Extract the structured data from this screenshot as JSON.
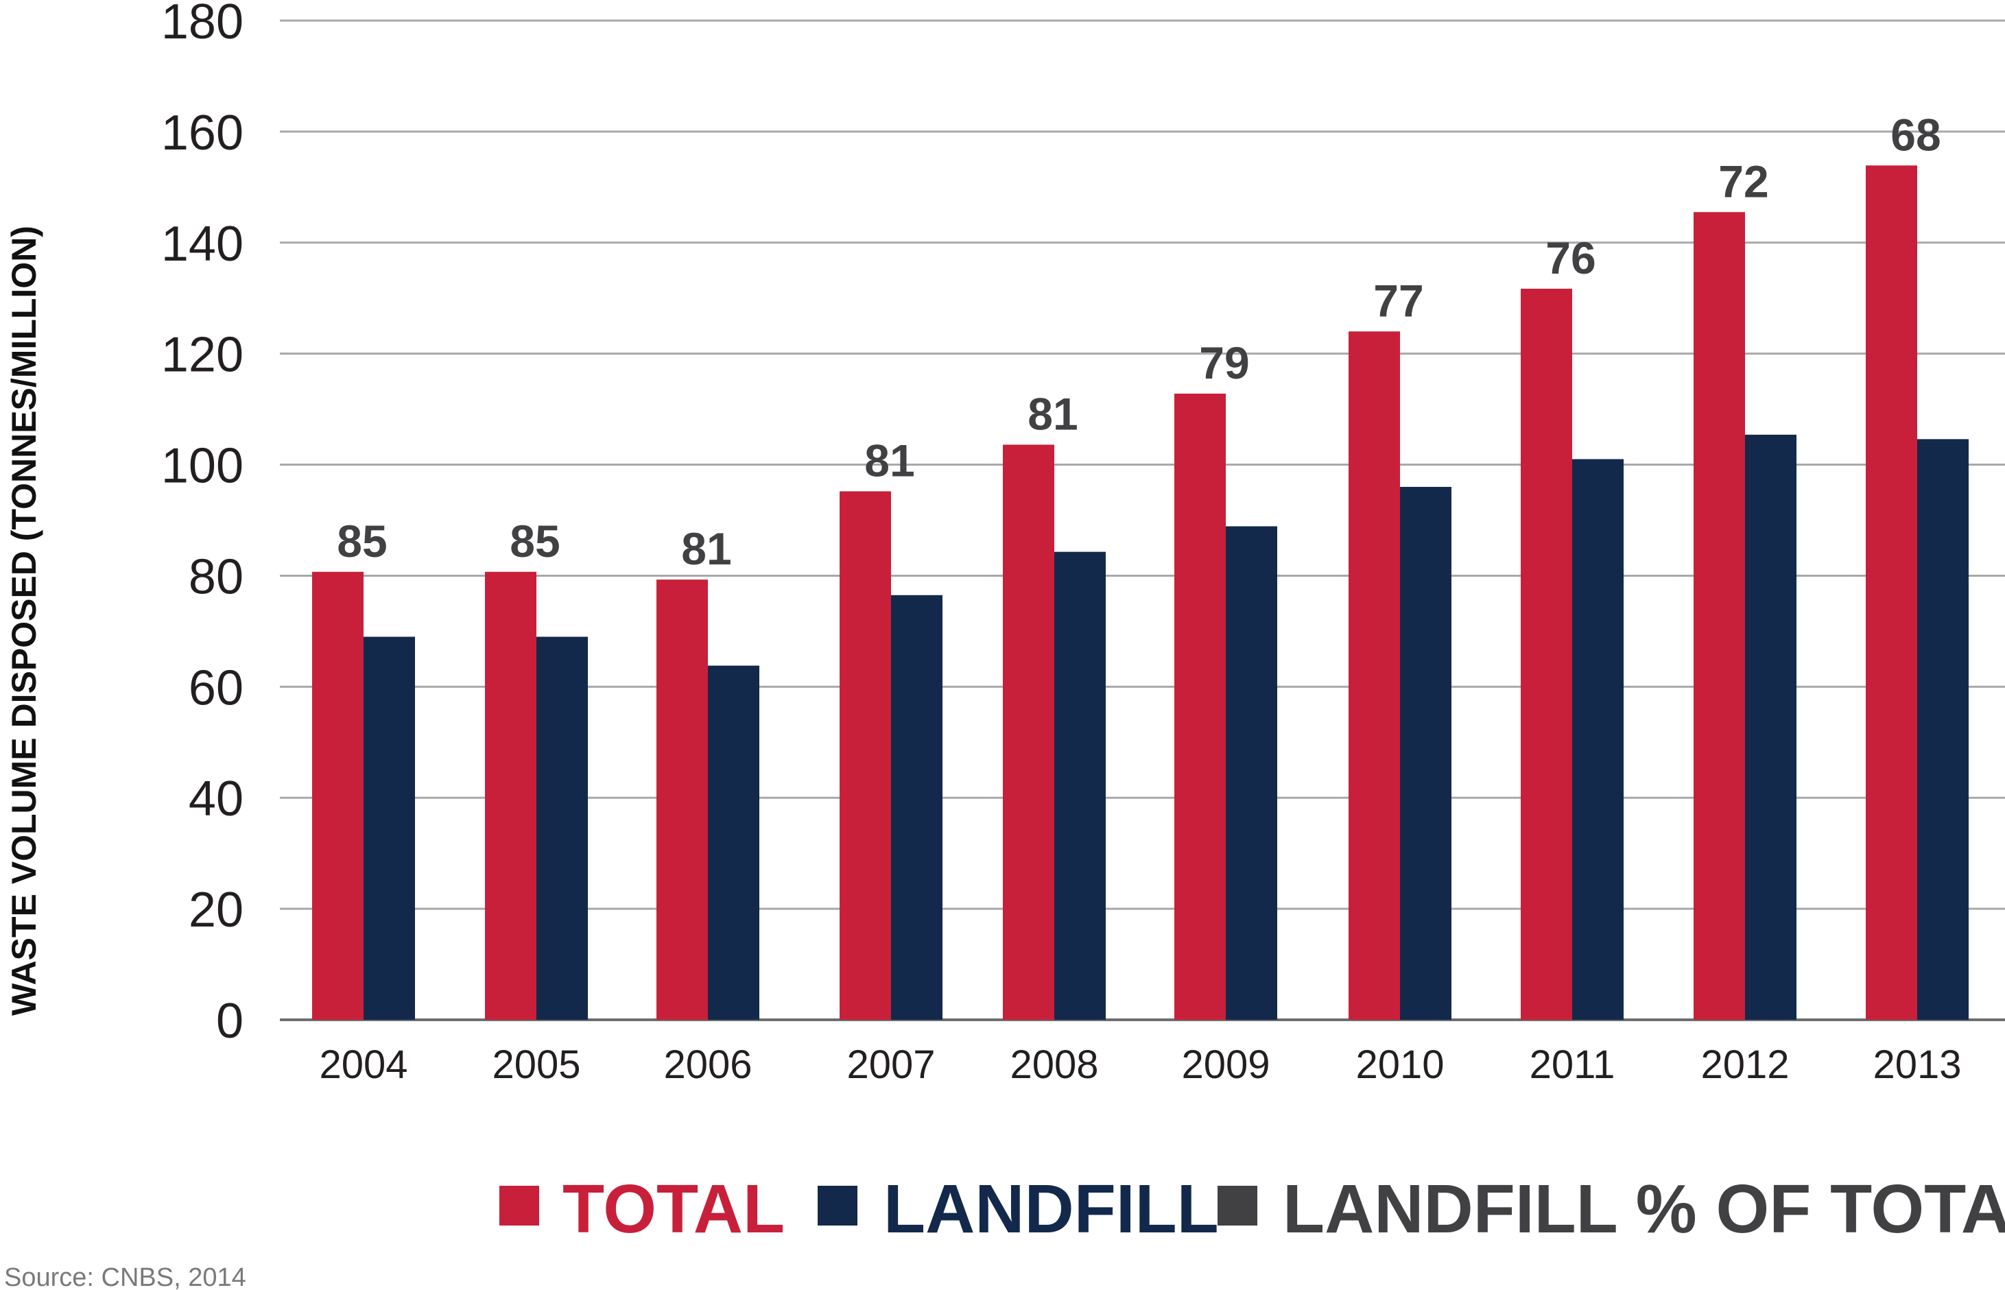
{
  "chart_data": {
    "type": "bar",
    "categories": [
      "2004",
      "2005",
      "2006",
      "2007",
      "2008",
      "2009",
      "2010",
      "2011",
      "2012",
      "2013"
    ],
    "series": [
      {
        "name": "TOTAL",
        "color": "#c8203a",
        "values": [
          80.7,
          80.7,
          79.3,
          95.2,
          103.6,
          112.8,
          124.0,
          131.7,
          145.5,
          153.9
        ]
      },
      {
        "name": "LANDFILL",
        "color": "#13294b",
        "values": [
          69.0,
          69.0,
          63.8,
          76.5,
          84.3,
          88.9,
          96.0,
          101.0,
          105.4,
          104.6
        ]
      }
    ],
    "extra_legend": {
      "name": "LANDFILL % OF TOTAL",
      "color": "#414042"
    },
    "percent_labels": [
      "85",
      "85",
      "81",
      "81",
      "81",
      "79",
      "77",
      "76",
      "72",
      "68"
    ],
    "ylabel": "WASTE VOLUME DISPOSED (TONNES/MILLION)",
    "xlabel": "",
    "ylim": [
      0,
      180
    ],
    "yticks": [
      "0",
      "20",
      "40",
      "60",
      "80",
      "100",
      "120",
      "140",
      "160",
      "180"
    ],
    "grid": true,
    "legend_position": "bottom"
  },
  "source": "Source: CNBS, 2014"
}
